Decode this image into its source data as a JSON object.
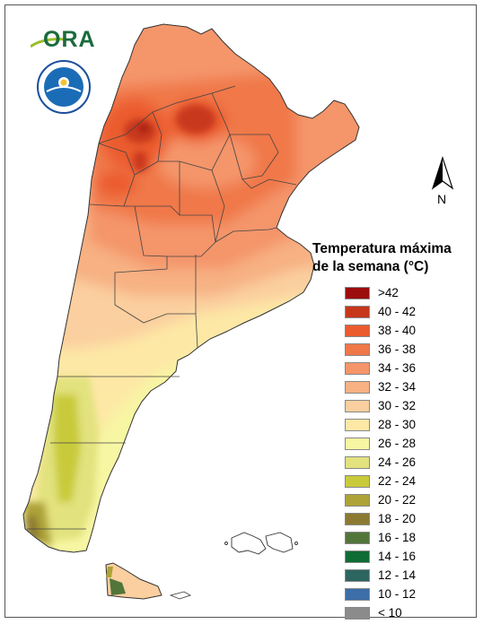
{
  "legend": {
    "title_line1": "Temperatura máxima",
    "title_line2": "de la semana (°C)",
    "classes": [
      {
        "label": ">42",
        "color": "#9c0d0d"
      },
      {
        "label": "40 - 42",
        "color": "#c8371c"
      },
      {
        "label": "38 - 40",
        "color": "#eb5b2d"
      },
      {
        "label": "36 - 38",
        "color": "#f07848"
      },
      {
        "label": "34 - 36",
        "color": "#f4956a"
      },
      {
        "label": "32 - 34",
        "color": "#f7b183"
      },
      {
        "label": "30 - 32",
        "color": "#fbcf9f"
      },
      {
        "label": "28 - 30",
        "color": "#fde8a6"
      },
      {
        "label": "26 - 28",
        "color": "#f7f6a3"
      },
      {
        "label": "24 - 26",
        "color": "#e2e27e"
      },
      {
        "label": "22 - 24",
        "color": "#c9ca3a"
      },
      {
        "label": "20 - 22",
        "color": "#aea337"
      },
      {
        "label": "18 - 20",
        "color": "#8c7a32"
      },
      {
        "label": "16 - 18",
        "color": "#52753a"
      },
      {
        "label": "14 - 16",
        "color": "#0f6c35"
      },
      {
        "label": "12 - 14",
        "color": "#2d6560"
      },
      {
        "label": "10 - 12",
        "color": "#3c6ea7"
      },
      {
        "label": "< 10",
        "color": "#8b8b8b"
      }
    ]
  },
  "logos": {
    "ora": "ORA",
    "smn_icon": "smn-logo-icon"
  },
  "north_arrow": {
    "label": "N"
  }
}
